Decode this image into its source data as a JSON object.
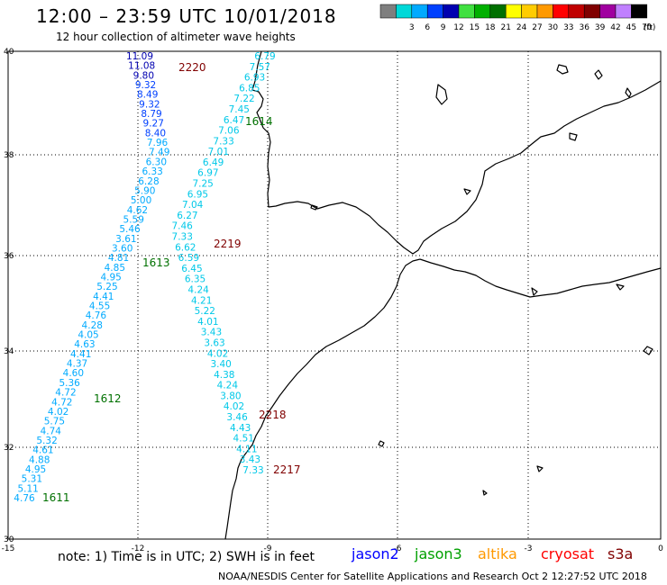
{
  "header": {
    "title": "12:00 – 23:59 UTC 10/01/2018",
    "subtitle": "12 hour collection of altimeter wave heights"
  },
  "legend": {
    "unit": "(ft)",
    "bins": [
      {
        "label": "",
        "color": "#7f7f7f"
      },
      {
        "label": "3",
        "color": "#00d8d8"
      },
      {
        "label": "6",
        "color": "#00aaff"
      },
      {
        "label": "9",
        "color": "#0040ff"
      },
      {
        "label": "12",
        "color": "#0000b0"
      },
      {
        "label": "15",
        "color": "#40e040"
      },
      {
        "label": "18",
        "color": "#00b000"
      },
      {
        "label": "21",
        "color": "#007000"
      },
      {
        "label": "24",
        "color": "#ffff00"
      },
      {
        "label": "27",
        "color": "#ffcc00"
      },
      {
        "label": "30",
        "color": "#ff9900"
      },
      {
        "label": "33",
        "color": "#ff0000"
      },
      {
        "label": "36",
        "color": "#c00000"
      },
      {
        "label": "39",
        "color": "#800000"
      },
      {
        "label": "42",
        "color": "#a000a0"
      },
      {
        "label": "45",
        "color": "#c080ff"
      },
      {
        "label": "70",
        "color": "#000000"
      }
    ]
  },
  "axes": {
    "x_ticks": [
      "-15",
      "-12",
      "-9",
      "-6",
      "-3",
      "0"
    ],
    "y_ticks": [
      "40",
      "38",
      "36",
      "34",
      "32",
      "30"
    ]
  },
  "passes": [
    {
      "label": "2220",
      "color": "#800000"
    },
    {
      "label": "1614",
      "color": "#007000"
    },
    {
      "label": "2219",
      "color": "#800000"
    },
    {
      "label": "1613",
      "color": "#007000"
    },
    {
      "label": "1612",
      "color": "#007000"
    },
    {
      "label": "2218",
      "color": "#800000"
    },
    {
      "label": "2217",
      "color": "#800000"
    },
    {
      "label": "1611",
      "color": "#007000"
    }
  ],
  "track_a": {
    "color_dark": "#0000b0",
    "color_mid": "#0040ff",
    "color_light": "#00aaff",
    "values": [
      "11.09",
      "11.08",
      "9.80",
      "9.32",
      "8.49",
      "9.32",
      "8.79",
      "9.27",
      "8.40",
      "7.96",
      "7.49",
      "6.30",
      "6.33",
      "6.28",
      "5.90",
      "5.00",
      "4.62",
      "5.59",
      "5.46",
      "3.61",
      "3.60",
      "4.81",
      "4.85",
      "4.95",
      "5.25",
      "4.41",
      "4.55",
      "4.76",
      "4.28",
      "4.05",
      "4.63",
      "4.41",
      "4.37",
      "4.60",
      "5.36",
      "4.72",
      "4.72",
      "4.02",
      "5.75",
      "4.74",
      "5.32",
      "4.61",
      "4.88",
      "4.95",
      "5.31",
      "5.11",
      "4.76"
    ]
  },
  "track_b": {
    "color": "#00c8e8",
    "values": [
      "6.79",
      "7.57",
      "6.93",
      "6.85",
      "7.22",
      "7.45",
      "6.47",
      "7.06",
      "7.33",
      "7.01",
      "6.49",
      "6.97",
      "7.25",
      "6.95",
      "7.04",
      "6.27",
      "7.46",
      "7.33",
      "6.62",
      "6.59",
      "6.45",
      "6.35",
      "4.24",
      "4.21",
      "5.22",
      "4.01",
      "3.43",
      "3.63",
      "4.02",
      "3.40",
      "4.38",
      "4.24",
      "3.80",
      "4.02",
      "3.46",
      "4.43",
      "4.51",
      "4.11",
      "3.43",
      "7.33"
    ]
  },
  "footer": {
    "note": "note:  1) Time is in UTC;  2) SWH is in feet",
    "satellites": [
      {
        "name": "jason2",
        "color": "#0000ff"
      },
      {
        "name": "jason3",
        "color": "#00a000"
      },
      {
        "name": "altika",
        "color": "#ff9900"
      },
      {
        "name": "cryosat",
        "color": "#ff0000"
      },
      {
        "name": "s3a",
        "color": "#800000"
      }
    ],
    "credit": "NOAA/NESDIS Center for Satellite Applications and Research    Oct  2 12:27:52 UTC 2018"
  }
}
